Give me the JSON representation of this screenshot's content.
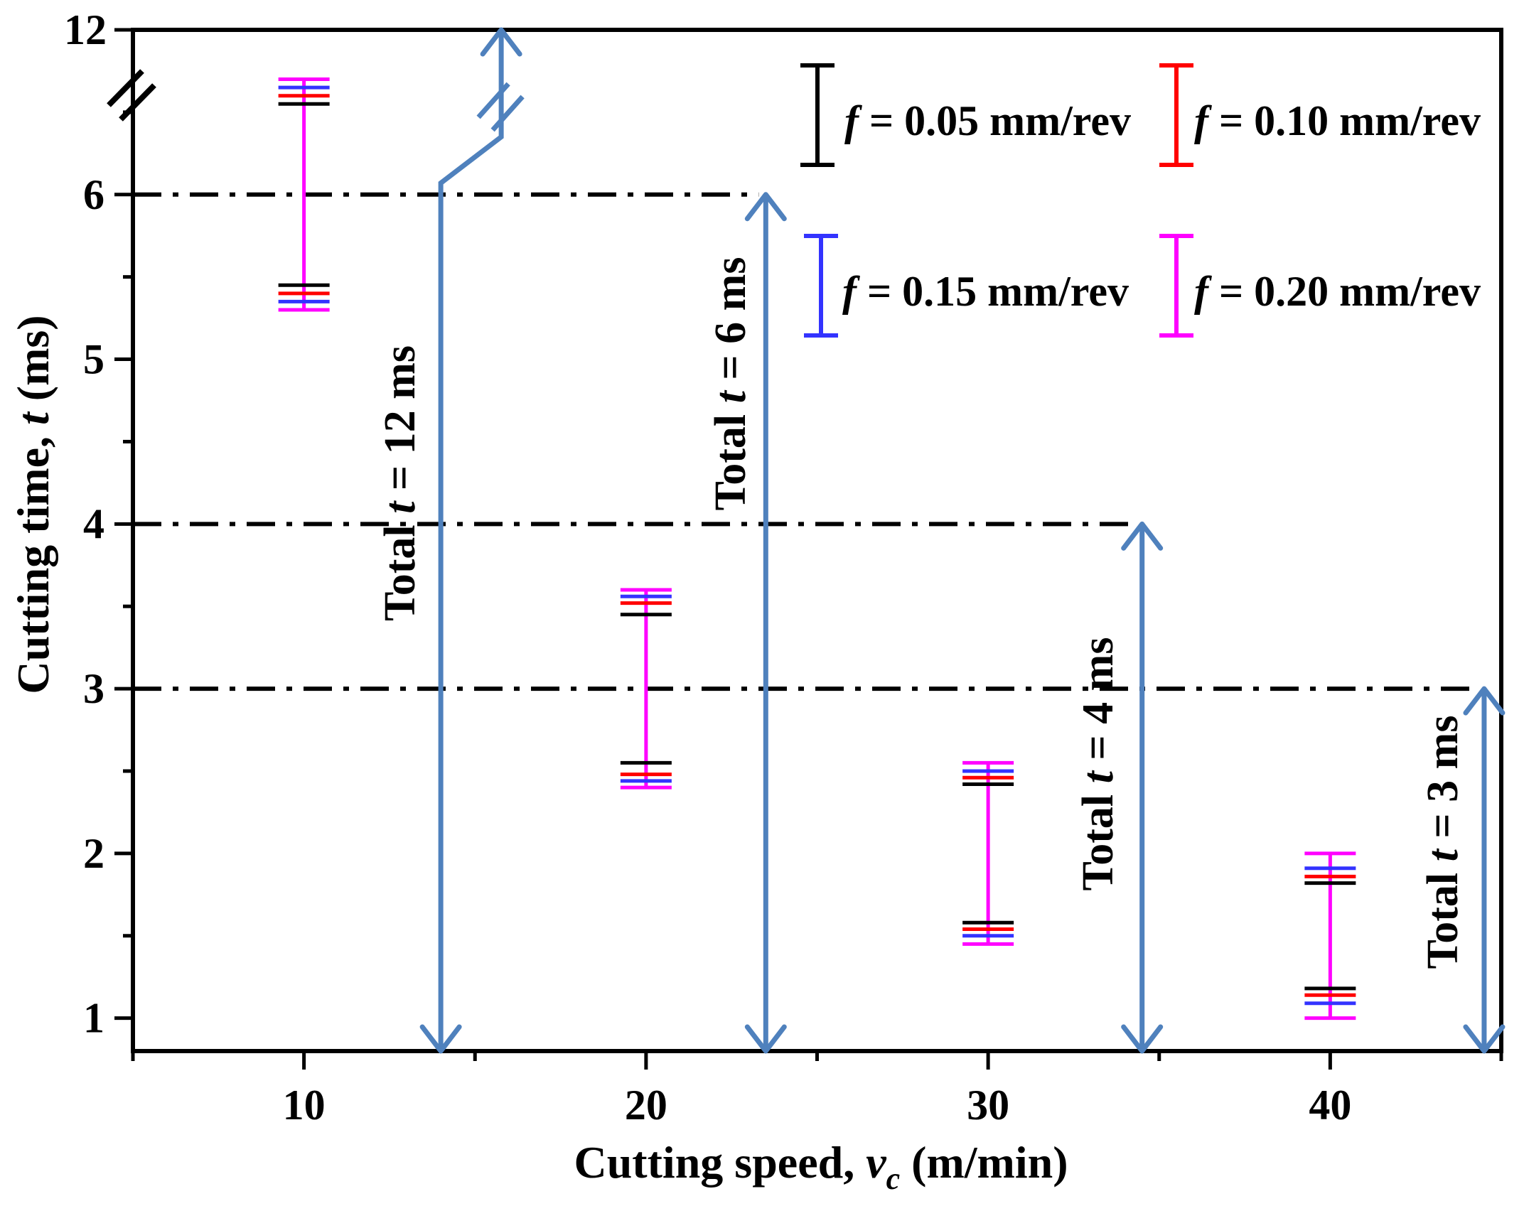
{
  "chart_data": {
    "type": "errorbar-range",
    "xlabel": "Cutting speed, vc (m/min)",
    "xlabel_parts": {
      "prefix": "Cutting speed, ",
      "var": "v",
      "sub": "c",
      "suffix": " (m/min)"
    },
    "ylabel": "Cutting time, t (ms)",
    "ylabel_parts": {
      "prefix": "Cutting time, ",
      "var": "t",
      "suffix": " (ms)"
    },
    "x_ticks": [
      10,
      20,
      30,
      40
    ],
    "x_tick_labels": [
      "10",
      "20",
      "30",
      "40"
    ],
    "xlim": [
      5,
      45
    ],
    "y_ticks": [
      1,
      2,
      3,
      4,
      5,
      6
    ],
    "y_tick_labels": [
      "1",
      "2",
      "3",
      "4",
      "5",
      "6"
    ],
    "y_top_label": "12",
    "ylim": [
      0.8,
      7.0
    ],
    "axis_break": true,
    "series": [
      {
        "name": "f = 0.05 mm/rev",
        "color": "#000000",
        "ranges": [
          {
            "x": 10,
            "low": 5.45,
            "high": 6.55
          },
          {
            "x": 20,
            "low": 2.55,
            "high": 3.45
          },
          {
            "x": 30,
            "low": 1.58,
            "high": 2.42
          },
          {
            "x": 40,
            "low": 1.18,
            "high": 1.82
          }
        ]
      },
      {
        "name": "f = 0.10 mm/rev",
        "color": "#ff0000",
        "ranges": [
          {
            "x": 10,
            "low": 5.4,
            "high": 6.6
          },
          {
            "x": 20,
            "low": 2.48,
            "high": 3.52
          },
          {
            "x": 30,
            "low": 1.54,
            "high": 2.46
          },
          {
            "x": 40,
            "low": 1.14,
            "high": 1.86
          }
        ]
      },
      {
        "name": "f = 0.15 mm/rev",
        "color": "#3333ff",
        "ranges": [
          {
            "x": 10,
            "low": 5.35,
            "high": 6.65
          },
          {
            "x": 20,
            "low": 2.44,
            "high": 3.56
          },
          {
            "x": 30,
            "low": 1.5,
            "high": 2.5
          },
          {
            "x": 40,
            "low": 1.09,
            "high": 1.91
          }
        ]
      },
      {
        "name": "f = 0.20 mm/rev",
        "color": "#ff00ff",
        "ranges": [
          {
            "x": 10,
            "low": 5.3,
            "high": 6.7
          },
          {
            "x": 20,
            "low": 2.4,
            "high": 3.6
          },
          {
            "x": 30,
            "low": 1.45,
            "high": 2.55
          },
          {
            "x": 40,
            "low": 1.0,
            "high": 2.0
          }
        ]
      }
    ],
    "legend": [
      {
        "prefix": "f",
        "text": " = 0.05 mm/rev",
        "color": "#000000"
      },
      {
        "prefix": "f",
        "text": " = 0.10 mm/rev",
        "color": "#ff0000"
      },
      {
        "prefix": "f",
        "text": " = 0.15 mm/rev",
        "color": "#3333ff"
      },
      {
        "prefix": "f",
        "text": " = 0.20 mm/rev",
        "color": "#ff00ff"
      }
    ],
    "legend_position": "top-right",
    "reference_lines": [
      {
        "y": 6,
        "x_end": 23.5
      },
      {
        "y": 4,
        "x_end": 34.5
      },
      {
        "y": 3,
        "x_end": 44.5
      }
    ],
    "annotations": [
      {
        "label": "Total t = 12 ms",
        "prefix": "Total ",
        "var": "t",
        "suffix": " = 12 ms",
        "x": 14,
        "from": 0.8,
        "to": 12
      },
      {
        "label": "Total t = 6 ms",
        "prefix": "Total ",
        "var": "t",
        "suffix": " = 6 ms",
        "x": 23.5,
        "from": 0.8,
        "to": 6
      },
      {
        "label": "Total t = 4 ms",
        "prefix": "Total ",
        "var": "t",
        "suffix": " = 4 ms",
        "x": 34.5,
        "from": 0.8,
        "to": 4
      },
      {
        "label": "Total t = 3 ms",
        "prefix": "Total ",
        "var": "t",
        "suffix": " = 3 ms",
        "x": 44.5,
        "from": 0.8,
        "to": 3
      }
    ],
    "arrow_color": "#4f81bd"
  }
}
